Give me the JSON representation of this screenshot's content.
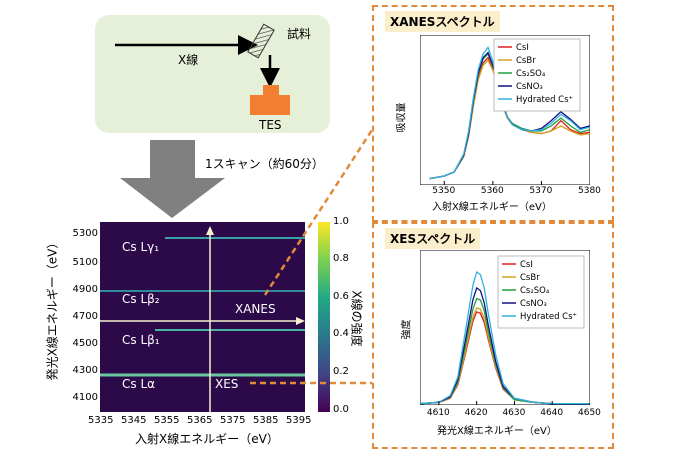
{
  "schematic": {
    "beam_label": "X線",
    "sample_label": "試料",
    "detector_label": "TES"
  },
  "scan_label": "1スキャン（約60分）",
  "map": {
    "ylabel": "発光X線エネルギー（eV）",
    "xlabel": "入射X線エネルギー（eV）",
    "x_ticks": [
      "5335",
      "5345",
      "5355",
      "5365",
      "5375",
      "5385",
      "5395"
    ],
    "y_ticks": [
      "5300",
      "5100",
      "4900",
      "4700",
      "4500",
      "4300",
      "4100"
    ],
    "colorbar_label": "X線の強度",
    "colorbar_ticks": [
      "1.0",
      "0.8",
      "0.6",
      "0.4",
      "0.2",
      "0.0"
    ],
    "lines": [
      {
        "label": "Cs Lγ₁",
        "energy": 5280
      },
      {
        "label": "Cs Lβ₂",
        "energy": 4935
      },
      {
        "label": "Cs Lβ₁",
        "energy": 4620
      },
      {
        "label": "Cs Lα",
        "energy": 4287
      }
    ],
    "xanes_label": "XANES",
    "xes_label": "XES"
  },
  "xanes_panel": {
    "title": "XANESスペクトル",
    "ylabel": "吸収量",
    "xlabel": "入射X線エネルギー（eV）"
  },
  "xes_panel": {
    "title": "XESスペクトル",
    "ylabel": "強度",
    "xlabel": "発光X線エネルギー（eV）"
  },
  "legend": [
    "CsI",
    "CsBr",
    "Cs₂SO₄",
    "CsNO₃",
    "Hydrated Cs⁺"
  ],
  "colors": {
    "accent_orange": "#e08a3a",
    "detector": "#f08030",
    "series": [
      "#e02020",
      "#d4a020",
      "#20a040",
      "#101080",
      "#30b0e0"
    ]
  },
  "chart_data": [
    {
      "type": "line",
      "title": "XANESスペクトル",
      "xlabel": "入射X線エネルギー（eV）",
      "ylabel": "吸収量",
      "xlim": [
        5345,
        5380
      ],
      "x_ticks": [
        5350,
        5360,
        5370,
        5380
      ],
      "x": [
        5347,
        5350,
        5352,
        5354,
        5355,
        5356,
        5357,
        5358,
        5359,
        5360,
        5361,
        5362,
        5363,
        5364,
        5366,
        5368,
        5370,
        5372,
        5374,
        5376,
        5378,
        5380
      ],
      "series": [
        {
          "name": "CsI",
          "values": [
            0.05,
            0.07,
            0.1,
            0.22,
            0.38,
            0.62,
            0.83,
            0.95,
            0.99,
            0.9,
            0.76,
            0.62,
            0.52,
            0.47,
            0.43,
            0.41,
            0.4,
            0.42,
            0.5,
            0.43,
            0.4,
            0.41
          ]
        },
        {
          "name": "CsBr",
          "values": [
            0.05,
            0.07,
            0.1,
            0.22,
            0.38,
            0.62,
            0.82,
            0.93,
            0.97,
            0.89,
            0.76,
            0.62,
            0.52,
            0.47,
            0.43,
            0.41,
            0.4,
            0.42,
            0.46,
            0.42,
            0.39,
            0.4
          ]
        },
        {
          "name": "Cs₂SO₄",
          "values": [
            0.05,
            0.07,
            0.1,
            0.23,
            0.4,
            0.65,
            0.86,
            0.98,
            1.02,
            0.92,
            0.78,
            0.63,
            0.53,
            0.48,
            0.44,
            0.42,
            0.42,
            0.46,
            0.52,
            0.46,
            0.41,
            0.43
          ]
        },
        {
          "name": "CsNO₃",
          "values": [
            0.05,
            0.07,
            0.1,
            0.23,
            0.4,
            0.66,
            0.87,
            0.99,
            1.03,
            0.93,
            0.78,
            0.63,
            0.53,
            0.47,
            0.43,
            0.42,
            0.44,
            0.5,
            0.57,
            0.51,
            0.44,
            0.46
          ]
        },
        {
          "name": "Hydrated Cs⁺",
          "values": [
            0.05,
            0.07,
            0.1,
            0.24,
            0.42,
            0.68,
            0.9,
            1.02,
            1.07,
            0.96,
            0.8,
            0.64,
            0.53,
            0.47,
            0.43,
            0.42,
            0.43,
            0.48,
            0.55,
            0.5,
            0.43,
            0.45
          ]
        }
      ]
    },
    {
      "type": "line",
      "title": "XESスペクトル",
      "xlabel": "発光X線エネルギー（eV）",
      "ylabel": "強度",
      "xlim": [
        4605,
        4650
      ],
      "x_ticks": [
        4610,
        4620,
        4630,
        4640,
        4650
      ],
      "x": [
        4605,
        4610,
        4613,
        4615,
        4617,
        4619,
        4620,
        4621,
        4622,
        4623,
        4625,
        4627,
        4630,
        4635,
        4640,
        4650
      ],
      "series": [
        {
          "name": "CsI",
          "values": [
            0.01,
            0.02,
            0.05,
            0.15,
            0.38,
            0.63,
            0.7,
            0.69,
            0.62,
            0.5,
            0.28,
            0.12,
            0.04,
            0.02,
            0.01,
            0.01
          ]
        },
        {
          "name": "CsBr",
          "values": [
            0.01,
            0.02,
            0.05,
            0.16,
            0.4,
            0.66,
            0.73,
            0.72,
            0.65,
            0.52,
            0.29,
            0.13,
            0.04,
            0.02,
            0.01,
            0.01
          ]
        },
        {
          "name": "Cs₂SO₄",
          "values": [
            0.01,
            0.02,
            0.06,
            0.17,
            0.44,
            0.72,
            0.8,
            0.79,
            0.71,
            0.56,
            0.31,
            0.13,
            0.04,
            0.02,
            0.01,
            0.01
          ]
        },
        {
          "name": "CsNO₃",
          "values": [
            0.01,
            0.02,
            0.06,
            0.19,
            0.48,
            0.79,
            0.88,
            0.86,
            0.77,
            0.61,
            0.33,
            0.14,
            0.05,
            0.02,
            0.01,
            0.01
          ]
        },
        {
          "name": "Hydrated Cs⁺",
          "values": [
            0.01,
            0.02,
            0.07,
            0.21,
            0.55,
            0.9,
            1.0,
            0.98,
            0.88,
            0.7,
            0.38,
            0.16,
            0.05,
            0.02,
            0.01,
            0.01
          ]
        }
      ]
    }
  ]
}
